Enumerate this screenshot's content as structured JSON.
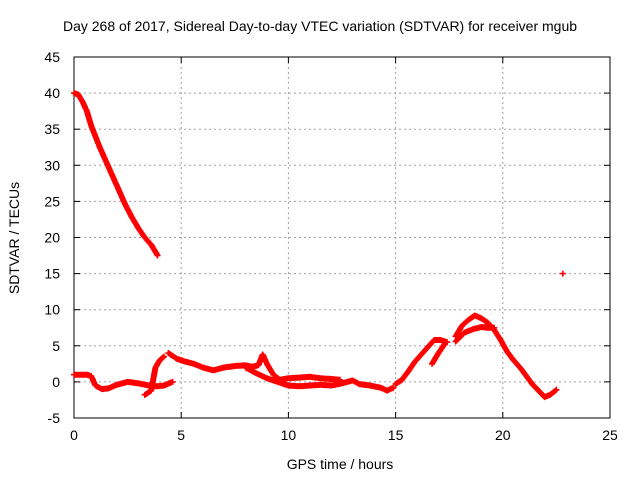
{
  "chart_data": {
    "type": "scatter",
    "title": "Day 268 of 2017, Sidereal Day-to-day VTEC variation (SDTVAR) for receiver mgub",
    "xlabel": "GPS time / hours",
    "ylabel": "SDTVAR / TECUs",
    "xlim": [
      0,
      25
    ],
    "ylim": [
      -5,
      45
    ],
    "xticks": [
      0,
      5,
      10,
      15,
      20,
      25
    ],
    "yticks": [
      -5,
      0,
      5,
      10,
      15,
      20,
      25,
      30,
      35,
      40,
      45
    ],
    "grid": true,
    "marker_color": "#ff0000",
    "series": [
      {
        "name": "segment-1",
        "points": [
          [
            0.0,
            40.0
          ],
          [
            0.2,
            39.8
          ],
          [
            0.4,
            38.8
          ],
          [
            0.6,
            37.5
          ],
          [
            0.8,
            35.5
          ],
          [
            1.0,
            34.0
          ],
          [
            1.2,
            32.5
          ],
          [
            1.5,
            30.5
          ],
          [
            1.8,
            28.5
          ],
          [
            2.1,
            26.5
          ],
          [
            2.4,
            24.5
          ],
          [
            2.7,
            22.8
          ],
          [
            3.0,
            21.3
          ],
          [
            3.3,
            20.0
          ],
          [
            3.6,
            19.0
          ],
          [
            3.9,
            17.5
          ]
        ]
      },
      {
        "name": "segment-2",
        "points": [
          [
            0.0,
            1.0
          ],
          [
            0.3,
            1.0
          ],
          [
            0.6,
            1.0
          ],
          [
            0.8,
            0.8
          ],
          [
            1.0,
            -0.5
          ],
          [
            1.3,
            -1.0
          ],
          [
            1.6,
            -0.9
          ],
          [
            2.0,
            -0.4
          ],
          [
            2.5,
            0.0
          ],
          [
            3.0,
            -0.2
          ],
          [
            3.5,
            -0.5
          ],
          [
            3.9,
            -0.6
          ],
          [
            4.2,
            -0.5
          ],
          [
            4.6,
            0.0
          ]
        ]
      },
      {
        "name": "segment-3",
        "points": [
          [
            3.3,
            -1.8
          ],
          [
            3.6,
            -1.2
          ],
          [
            3.8,
            2.0
          ],
          [
            4.0,
            3.0
          ],
          [
            4.2,
            3.5
          ]
        ]
      },
      {
        "name": "segment-4",
        "points": [
          [
            4.4,
            4.0
          ],
          [
            4.8,
            3.2
          ],
          [
            5.2,
            2.8
          ],
          [
            5.6,
            2.5
          ],
          [
            6.0,
            2.0
          ],
          [
            6.5,
            1.6
          ],
          [
            7.0,
            2.0
          ],
          [
            7.5,
            2.2
          ],
          [
            8.0,
            2.3
          ],
          [
            8.3,
            2.1
          ],
          [
            8.6,
            2.3
          ],
          [
            8.8,
            3.8
          ],
          [
            9.0,
            2.5
          ],
          [
            9.3,
            1.0
          ],
          [
            9.6,
            0.3
          ],
          [
            10.0,
            0.5
          ],
          [
            10.5,
            0.6
          ],
          [
            11.0,
            0.7
          ],
          [
            11.5,
            0.5
          ],
          [
            12.0,
            0.4
          ],
          [
            12.4,
            0.3
          ]
        ]
      },
      {
        "name": "segment-5",
        "points": [
          [
            8.0,
            2.0
          ],
          [
            8.5,
            1.2
          ],
          [
            9.0,
            0.5
          ],
          [
            9.5,
            0.0
          ],
          [
            10.0,
            -0.5
          ],
          [
            10.5,
            -0.6
          ],
          [
            11.0,
            -0.5
          ],
          [
            11.5,
            -0.4
          ],
          [
            12.0,
            -0.5
          ],
          [
            12.5,
            -0.2
          ],
          [
            13.0,
            0.2
          ],
          [
            13.3,
            -0.3
          ],
          [
            13.8,
            -0.5
          ],
          [
            14.3,
            -0.8
          ],
          [
            14.6,
            -1.2
          ],
          [
            14.9,
            -0.8
          ]
        ]
      },
      {
        "name": "segment-6",
        "points": [
          [
            15.0,
            -0.3
          ],
          [
            15.3,
            0.3
          ],
          [
            15.6,
            1.5
          ],
          [
            15.9,
            2.8
          ],
          [
            16.2,
            3.8
          ],
          [
            16.5,
            4.8
          ],
          [
            16.8,
            5.8
          ],
          [
            17.1,
            5.8
          ],
          [
            17.4,
            5.5
          ]
        ]
      },
      {
        "name": "segment-7",
        "points": [
          [
            16.7,
            2.5
          ],
          [
            17.0,
            4.0
          ],
          [
            17.3,
            5.3
          ]
        ]
      },
      {
        "name": "segment-8",
        "points": [
          [
            17.8,
            6.3
          ],
          [
            18.1,
            7.8
          ],
          [
            18.4,
            8.6
          ],
          [
            18.7,
            9.2
          ],
          [
            19.0,
            8.8
          ],
          [
            19.3,
            8.2
          ],
          [
            19.6,
            7.2
          ],
          [
            19.9,
            5.8
          ],
          [
            20.2,
            4.2
          ],
          [
            20.5,
            3.0
          ],
          [
            20.8,
            2.0
          ],
          [
            21.1,
            0.8
          ],
          [
            21.4,
            -0.4
          ],
          [
            21.7,
            -1.3
          ],
          [
            21.95,
            -2.1
          ],
          [
            22.2,
            -1.8
          ],
          [
            22.5,
            -1.1
          ]
        ]
      },
      {
        "name": "segment-9",
        "points": [
          [
            17.8,
            5.6
          ],
          [
            18.2,
            6.8
          ],
          [
            18.6,
            7.3
          ],
          [
            19.0,
            7.6
          ],
          [
            19.3,
            7.5
          ],
          [
            19.6,
            7.5
          ]
        ]
      },
      {
        "name": "segment-10",
        "points": [
          [
            22.8,
            15.0
          ]
        ]
      }
    ]
  }
}
